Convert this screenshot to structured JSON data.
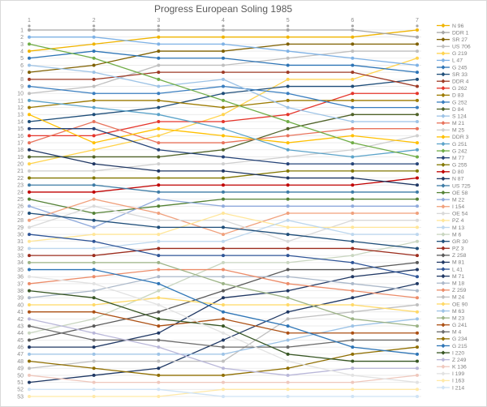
{
  "chart_data": {
    "type": "line",
    "title": "Progress European Soling 1985",
    "xlabel": "",
    "ylabel": "",
    "x": [
      1,
      2,
      3,
      4,
      5,
      6,
      7
    ],
    "x_tick_labels": [
      "1",
      "2",
      "3",
      "4",
      "5",
      "6",
      "7"
    ],
    "x_axis_position": "top",
    "ylim": [
      1,
      53
    ],
    "y_tick_interval": 1,
    "y_axis_inverted": true,
    "grid": true,
    "legend_position": "right",
    "axis_color": "#8c8c8c",
    "grid_color": "#e9e9e9",
    "series": [
      {
        "name": "N 96",
        "color": "#f0b400",
        "positions": [
          4,
          3,
          2,
          2,
          2,
          2,
          1
        ]
      },
      {
        "name": "DDR 1",
        "color": "#a6a6a6",
        "positions": [
          1,
          1,
          1,
          1,
          1,
          1,
          2
        ]
      },
      {
        "name": "SR 27",
        "color": "#7f6000",
        "positions": [
          7,
          6,
          4,
          4,
          3,
          3,
          3
        ]
      },
      {
        "name": "US 706",
        "color": "#bfbfbf",
        "positions": [
          10,
          9,
          6,
          6,
          5,
          4,
          4
        ]
      },
      {
        "name": "G 219",
        "color": "#ffd34d",
        "positions": [
          20,
          18,
          16,
          13,
          8,
          8,
          5
        ]
      },
      {
        "name": "L 47",
        "color": "#7fb2e5",
        "positions": [
          2,
          2,
          3,
          3,
          4,
          5,
          6
        ]
      },
      {
        "name": "G 245",
        "color": "#2e75b6",
        "positions": [
          5,
          4,
          5,
          5,
          6,
          6,
          7
        ]
      },
      {
        "name": "SR 33",
        "color": "#1f4e79",
        "positions": [
          14,
          13,
          12,
          10,
          9,
          9,
          8
        ]
      },
      {
        "name": "DDR 4",
        "color": "#9e3a26",
        "positions": [
          8,
          8,
          7,
          7,
          7,
          7,
          9
        ]
      },
      {
        "name": "G 262",
        "color": "#e5352b",
        "positions": [
          16,
          16,
          14,
          14,
          13,
          10,
          10
        ]
      },
      {
        "name": "D 83",
        "color": "#9c7a00",
        "positions": [
          12,
          11,
          11,
          12,
          11,
          11,
          11
        ]
      },
      {
        "name": "G 252",
        "color": "#3a7ebf",
        "positions": [
          9,
          10,
          10,
          9,
          10,
          12,
          12
        ]
      },
      {
        "name": "D 84",
        "color": "#4f6228",
        "positions": [
          19,
          19,
          19,
          18,
          15,
          13,
          13
        ]
      },
      {
        "name": "S 124",
        "color": "#9dc3e6",
        "positions": [
          6,
          7,
          9,
          8,
          12,
          14,
          14
        ]
      },
      {
        "name": "M 21",
        "color": "#e8735c",
        "positions": [
          17,
          14,
          17,
          17,
          16,
          15,
          15
        ]
      },
      {
        "name": "M 25",
        "color": "#cfcfcf",
        "positions": [
          21,
          21,
          20,
          20,
          19,
          18,
          16
        ]
      },
      {
        "name": "DDR 3",
        "color": "#ffc000",
        "positions": [
          13,
          17,
          15,
          16,
          17,
          16,
          17
        ]
      },
      {
        "name": "G 251",
        "color": "#5ba3c9",
        "positions": [
          11,
          12,
          13,
          15,
          18,
          19,
          18
        ]
      },
      {
        "name": "G 242",
        "color": "#70ad47",
        "positions": [
          3,
          5,
          8,
          11,
          14,
          17,
          19
        ]
      },
      {
        "name": "M 77",
        "color": "#264478",
        "positions": [
          15,
          15,
          18,
          19,
          20,
          20,
          20
        ]
      },
      {
        "name": "G 255",
        "color": "#827700",
        "positions": [
          22,
          22,
          22,
          22,
          21,
          21,
          21
        ]
      },
      {
        "name": "D 80",
        "color": "#c00000",
        "positions": [
          24,
          24,
          23,
          23,
          23,
          23,
          22
        ]
      },
      {
        "name": "N 87",
        "color": "#203864",
        "positions": [
          18,
          20,
          21,
          21,
          22,
          22,
          23
        ]
      },
      {
        "name": "US 725",
        "color": "#3e7ca6",
        "positions": [
          23,
          23,
          24,
          24,
          24,
          24,
          24
        ]
      },
      {
        "name": "OE 58",
        "color": "#548235",
        "positions": [
          25,
          27,
          26,
          25,
          25,
          25,
          25
        ]
      },
      {
        "name": "M 22",
        "color": "#8faadc",
        "positions": [
          26,
          29,
          25,
          26,
          26,
          26,
          26
        ]
      },
      {
        "name": "I 154",
        "color": "#f0a07c",
        "positions": [
          28,
          25,
          27,
          30,
          27,
          27,
          27
        ]
      },
      {
        "name": "OE 54",
        "color": "#d9d9d9",
        "positions": [
          29,
          26,
          28,
          28,
          31,
          28,
          28
        ]
      },
      {
        "name": "PZ 4",
        "color": "#ffe699",
        "positions": [
          31,
          30,
          30,
          27,
          29,
          29,
          29
        ]
      },
      {
        "name": "M 13",
        "color": "#bdd7ee",
        "positions": [
          32,
          32,
          31,
          31,
          28,
          30,
          30
        ]
      },
      {
        "name": "M 6",
        "color": "#c9d6c0",
        "positions": [
          44,
          42,
          38,
          34,
          34,
          33,
          31
        ]
      },
      {
        "name": "GR 30",
        "color": "#1f4e79",
        "positions": [
          27,
          28,
          29,
          29,
          30,
          31,
          32
        ]
      },
      {
        "name": "PZ 3",
        "color": "#9c2d1e",
        "positions": [
          33,
          33,
          32,
          32,
          32,
          32,
          33
        ]
      },
      {
        "name": "Z 258",
        "color": "#595959",
        "positions": [
          45,
          43,
          41,
          38,
          35,
          35,
          34
        ]
      },
      {
        "name": "M 81",
        "color": "#203864",
        "positions": [
          46,
          46,
          44,
          39,
          38,
          36,
          35
        ]
      },
      {
        "name": "L 41",
        "color": "#2f5597",
        "positions": [
          30,
          31,
          33,
          33,
          33,
          34,
          36
        ]
      },
      {
        "name": "M 71",
        "color": "#1f3864",
        "positions": [
          51,
          50,
          49,
          45,
          41,
          39,
          37
        ]
      },
      {
        "name": "M 18",
        "color": "#acb9ca",
        "positions": [
          39,
          38,
          36,
          36,
          36,
          37,
          38
        ]
      },
      {
        "name": "Z 259",
        "color": "#ec8c69",
        "positions": [
          37,
          36,
          35,
          35,
          37,
          38,
          39
        ]
      },
      {
        "name": "M 24",
        "color": "#bfbfbf",
        "positions": [
          49,
          48,
          48,
          48,
          42,
          41,
          40
        ]
      },
      {
        "name": "OE 90",
        "color": "#ffd966",
        "positions": [
          40,
          40,
          39,
          40,
          40,
          40,
          41
        ]
      },
      {
        "name": "M 63",
        "color": "#9dc3e6",
        "positions": [
          47,
          47,
          47,
          47,
          45,
          43,
          42
        ]
      },
      {
        "name": "M 23",
        "color": "#9cb386",
        "positions": [
          34,
          34,
          34,
          37,
          39,
          42,
          43
        ]
      },
      {
        "name": "G 241",
        "color": "#ac5014",
        "positions": [
          41,
          41,
          43,
          42,
          44,
          44,
          44
        ]
      },
      {
        "name": "M 4",
        "color": "#6b6b6b",
        "positions": [
          43,
          45,
          45,
          46,
          46,
          45,
          45
        ]
      },
      {
        "name": "G 234",
        "color": "#8f6e00",
        "positions": [
          48,
          49,
          50,
          50,
          49,
          47,
          46
        ]
      },
      {
        "name": "G 215",
        "color": "#2e75b6",
        "positions": [
          35,
          35,
          37,
          41,
          43,
          46,
          47
        ]
      },
      {
        "name": "I 220",
        "color": "#375623",
        "positions": [
          38,
          39,
          42,
          43,
          47,
          48,
          48
        ]
      },
      {
        "name": "Z 249",
        "color": "#b9b7d9",
        "positions": [
          42,
          44,
          46,
          49,
          50,
          49,
          49
        ]
      },
      {
        "name": "K 136",
        "color": "#efc8bd",
        "positions": [
          50,
          51,
          51,
          51,
          51,
          51,
          50
        ]
      },
      {
        "name": "I 199",
        "color": "#e2e2e2",
        "positions": [
          36,
          37,
          40,
          44,
          48,
          50,
          51
        ]
      },
      {
        "name": "I 163",
        "color": "#ffe9a8",
        "positions": [
          53,
          53,
          53,
          52,
          52,
          52,
          52
        ]
      },
      {
        "name": "I 214",
        "color": "#cfe3f5",
        "positions": [
          52,
          52,
          52,
          53,
          53,
          53,
          53
        ]
      }
    ]
  }
}
